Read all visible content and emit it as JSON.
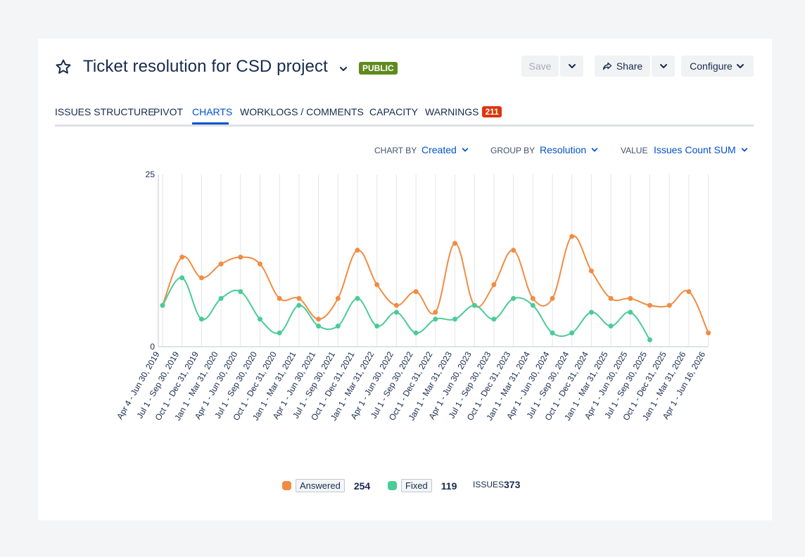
{
  "header": {
    "title": "Ticket resolution for CSD project",
    "visibility_badge": "PUBLIC",
    "save_label": "Save",
    "share_label": "Share",
    "configure_label": "Configure"
  },
  "tabs": [
    {
      "label": "ISSUES STRUCTURE"
    },
    {
      "label": "PIVOT"
    },
    {
      "label": "CHARTS"
    },
    {
      "label": "WORKLOGS / COMMENTS"
    },
    {
      "label": "CAPACITY"
    },
    {
      "label": "WARNINGS",
      "badge": "211"
    }
  ],
  "controls": {
    "chart_by": {
      "label": "CHART BY",
      "value": "Created"
    },
    "group_by": {
      "label": "GROUP BY",
      "value": "Resolution"
    },
    "value": {
      "label": "VALUE",
      "value": "Issues Count SUM"
    }
  },
  "chart_data": {
    "type": "line",
    "categories": [
      "Apr 4 - Jun 30, 2019",
      "Jul 1 - Sep 30, 2019",
      "Oct 1 - Dec 31, 2019",
      "Jan 1 - Mar 31, 2020",
      "Apr 1 - Jun 30, 2020",
      "Jul 1 - Sep 30, 2020",
      "Oct 1 - Dec 31, 2020",
      "Jan 1 - Mar 31, 2021",
      "Apr 1 - Jun 30, 2021",
      "Jul 1 - Sep 30, 2021",
      "Oct 1 - Dec 31, 2021",
      "Jan 1 - Mar 31, 2022",
      "Apr 1 - Jun 30, 2022",
      "Jul 1 - Sep 30, 2022",
      "Oct 1 - Dec 31, 2022",
      "Jan 1 - Mar 31, 2023",
      "Apr 1 - Jun 30, 2023",
      "Jul 1 - Sep 30, 2023",
      "Oct 1 - Dec 31, 2023",
      "Jan 1 - Mar 31, 2024",
      "Apr 1 - Jun 30, 2024",
      "Jul 1 - Sep 30, 2024",
      "Oct 1 - Dec 31, 2024",
      "Jan 1 - Mar 31, 2025",
      "Apr 1 - Jun 30, 2025",
      "Jul 1 - Sep 30, 2025",
      "Oct 1 - Dec 31, 2025",
      "Jan 1 - Mar 31, 2026",
      "Apr 1 - Jun 16, 2026"
    ],
    "series": [
      {
        "name": "Answered",
        "color": "#f18c43",
        "values": [
          6,
          13,
          10,
          12,
          13,
          12,
          7,
          7,
          4,
          7,
          14,
          9,
          6,
          8,
          5,
          15,
          6,
          9,
          14,
          7,
          7,
          16,
          11,
          7,
          7,
          6,
          6,
          8,
          2
        ]
      },
      {
        "name": "Fixed",
        "color": "#4bcb97",
        "values": [
          6,
          10,
          4,
          7,
          8,
          4,
          2,
          6,
          3,
          3,
          7,
          3,
          5,
          2,
          4,
          4,
          6,
          4,
          7,
          6,
          2,
          2,
          5,
          3,
          5,
          1,
          null,
          null,
          null
        ]
      }
    ],
    "yticks": [
      "0",
      "25"
    ],
    "ylim": [
      0,
      25
    ],
    "grid": "vertical",
    "legend_position": "bottom"
  },
  "legend": {
    "items": [
      {
        "name": "Answered",
        "total": "254",
        "color": "#f18c43"
      },
      {
        "name": "Fixed",
        "total": "119",
        "color": "#4bcb97"
      }
    ],
    "issues_label": "ISSUES",
    "issues_total": "373"
  },
  "icons": {
    "star": "star-outline-icon",
    "chevron": "chevron-down-icon",
    "share": "share-icon"
  }
}
